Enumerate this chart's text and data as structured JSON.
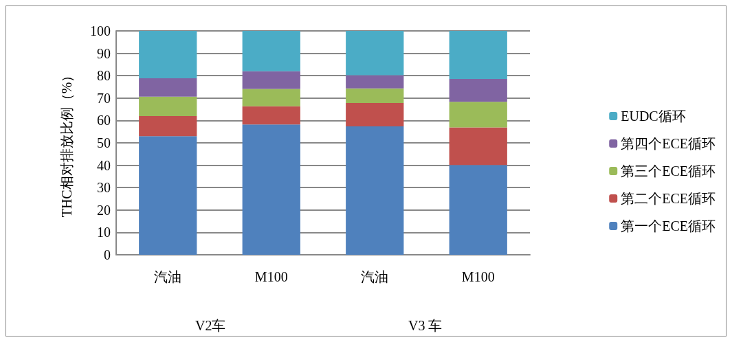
{
  "chart_data": {
    "type": "bar",
    "stacked": true,
    "ylabel": "THC相对排放比例（%）",
    "categories": [
      "汽油",
      "M100",
      "汽油",
      "M100"
    ],
    "series": [
      {
        "name": "第一个ECE循环",
        "color": "#4f81bd",
        "values": [
          53.0,
          58.2,
          57.4,
          40.1
        ]
      },
      {
        "name": "第二个ECE循环",
        "color": "#c0504d",
        "values": [
          9.0,
          8.1,
          10.4,
          16.8
        ]
      },
      {
        "name": "第三个ECE循环",
        "color": "#9bbb59",
        "values": [
          8.6,
          7.8,
          6.5,
          11.4
        ]
      },
      {
        "name": "第四个ECE循环",
        "color": "#8064a2",
        "values": [
          8.2,
          7.9,
          5.9,
          10.2
        ]
      },
      {
        "name": "EUDC循环",
        "color": "#4bacc6",
        "values": [
          21.2,
          18.0,
          19.8,
          21.5
        ]
      }
    ],
    "ylim": [
      0,
      100
    ],
    "yticks": [
      0,
      10,
      20,
      30,
      40,
      50,
      60,
      70,
      80,
      90,
      100
    ],
    "grid": "y",
    "legend": "right",
    "annotations": [
      "V2车",
      "V3 车"
    ]
  }
}
